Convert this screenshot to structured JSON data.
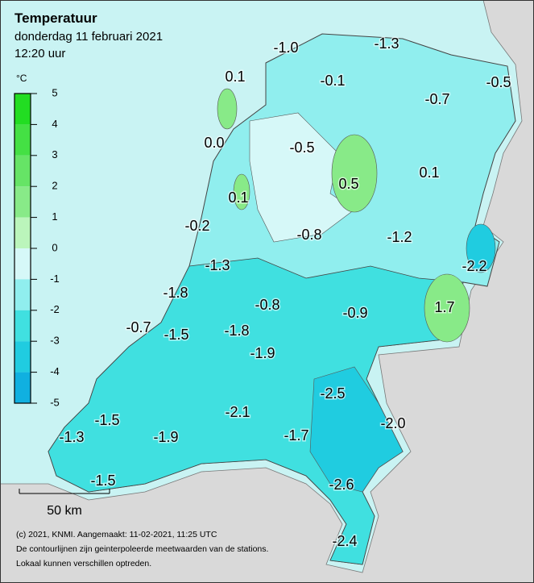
{
  "header": {
    "title": "Temperatuur",
    "date": "donderdag 11 februari 2021",
    "time": "12:20 uur"
  },
  "legend": {
    "unit": "°C",
    "ticks": [
      5,
      4,
      3,
      2,
      1,
      0,
      -1,
      -2,
      -3,
      -4,
      -5
    ],
    "colors": [
      "#22dd22",
      "#44e044",
      "#66e466",
      "#88ea88",
      "#bbf5bb",
      "#d6f8f8",
      "#90eeee",
      "#40e0e0",
      "#20cce0",
      "#10b0e0"
    ]
  },
  "stations": [
    "-1.0",
    "-1.3",
    "0.1",
    "-0.1",
    "-0.5",
    "-0.7",
    "0.0",
    "-0.5",
    "0.1",
    "0.5",
    "0.1",
    "-0.2",
    "-0.8",
    "-1.2",
    "-2.2",
    "-1.3",
    "-1.8",
    "-0.8",
    "-0.9",
    "1.7",
    "-0.7",
    "-1.5",
    "-1.8",
    "-1.9",
    "-2.5",
    "-2.1",
    "-2.0",
    "-1.5",
    "-1.3",
    "-1.9",
    "-1.7",
    "-2.6",
    "-1.5",
    "-2.4"
  ],
  "scale": {
    "label": "50 km"
  },
  "footer": [
    "(c) 2021, KNMI. Aangemaakt: 11-02-2021, 11:25 UTC",
    "De contourlijnen zijn geinterpoleerde meetwaarden van de stations.",
    "Lokaal kunnen verschillen optreden."
  ]
}
